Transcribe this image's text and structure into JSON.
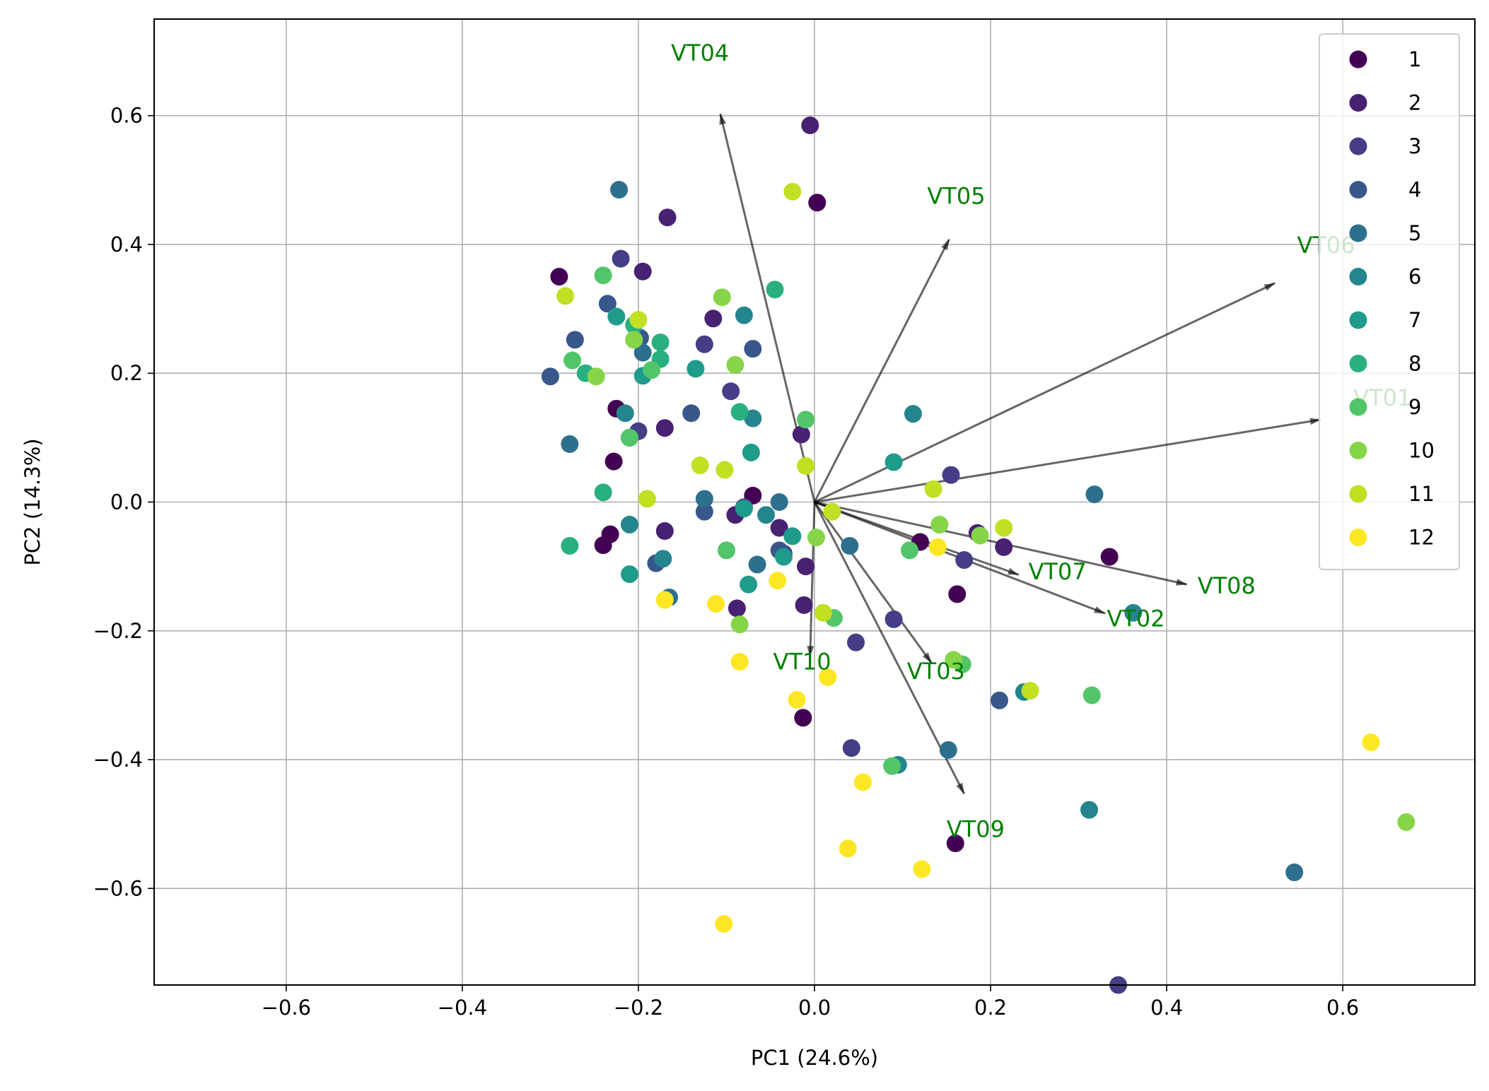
{
  "chart_data": {
    "type": "scatter",
    "title": "",
    "xlabel": "PC1 (24.6%)",
    "ylabel": "PC2 (14.3%)",
    "xlim": [
      -0.75,
      0.75
    ],
    "ylim": [
      -0.75,
      0.75
    ],
    "grid": true,
    "legend_placement": "top-right",
    "xticks": [
      {
        "value": -0.6,
        "label": "−0.6"
      },
      {
        "value": -0.4,
        "label": "−0.4"
      },
      {
        "value": -0.2,
        "label": "−0.2"
      },
      {
        "value": 0.0,
        "label": "0.0"
      },
      {
        "value": 0.2,
        "label": "0.2"
      },
      {
        "value": 0.4,
        "label": "0.4"
      },
      {
        "value": 0.6,
        "label": "0.6"
      }
    ],
    "yticks": [
      {
        "value": -0.6,
        "label": "−0.6"
      },
      {
        "value": -0.4,
        "label": "−0.4"
      },
      {
        "value": -0.2,
        "label": "−0.2"
      },
      {
        "value": 0.0,
        "label": "0.0"
      },
      {
        "value": 0.2,
        "label": "0.2"
      },
      {
        "value": 0.4,
        "label": "0.4"
      },
      {
        "value": 0.6,
        "label": "0.6"
      }
    ],
    "groups": [
      {
        "label": "1",
        "color": "#440154"
      },
      {
        "label": "2",
        "color": "#482173"
      },
      {
        "label": "3",
        "color": "#433e85"
      },
      {
        "label": "4",
        "color": "#38588c"
      },
      {
        "label": "5",
        "color": "#2d708e"
      },
      {
        "label": "6",
        "color": "#25858e"
      },
      {
        "label": "7",
        "color": "#1e9b8a"
      },
      {
        "label": "8",
        "color": "#2ab07f"
      },
      {
        "label": "9",
        "color": "#52c569"
      },
      {
        "label": "10",
        "color": "#86d549"
      },
      {
        "label": "11",
        "color": "#c2df23"
      },
      {
        "label": "12",
        "color": "#fde725"
      }
    ],
    "points": [
      {
        "g": "1",
        "x": -0.29,
        "y": 0.35
      },
      {
        "g": "1",
        "x": -0.225,
        "y": 0.145
      },
      {
        "g": "1",
        "x": -0.228,
        "y": 0.063
      },
      {
        "g": "1",
        "x": -0.24,
        "y": -0.067
      },
      {
        "g": "1",
        "x": -0.232,
        "y": -0.05
      },
      {
        "g": "1",
        "x": 0.003,
        "y": 0.465
      },
      {
        "g": "1",
        "x": -0.07,
        "y": 0.01
      },
      {
        "g": "1",
        "x": 0.12,
        "y": -0.062
      },
      {
        "g": "1",
        "x": 0.162,
        "y": -0.143
      },
      {
        "g": "1",
        "x": 0.335,
        "y": -0.085
      },
      {
        "g": "1",
        "x": 0.16,
        "y": -0.53
      },
      {
        "g": "1",
        "x": -0.013,
        "y": -0.335
      },
      {
        "g": "1",
        "x": -0.21,
        "y": 0.1
      },
      {
        "g": "2",
        "x": -0.005,
        "y": 0.585
      },
      {
        "g": "2",
        "x": -0.167,
        "y": 0.442
      },
      {
        "g": "2",
        "x": -0.195,
        "y": 0.358
      },
      {
        "g": "2",
        "x": -0.115,
        "y": 0.285
      },
      {
        "g": "2",
        "x": -0.17,
        "y": 0.115
      },
      {
        "g": "2",
        "x": -0.015,
        "y": 0.105
      },
      {
        "g": "2",
        "x": -0.17,
        "y": -0.045
      },
      {
        "g": "2",
        "x": -0.09,
        "y": -0.02
      },
      {
        "g": "2",
        "x": -0.04,
        "y": -0.04
      },
      {
        "g": "2",
        "x": -0.01,
        "y": -0.1
      },
      {
        "g": "2",
        "x": -0.012,
        "y": -0.16
      },
      {
        "g": "2",
        "x": -0.088,
        "y": -0.165
      },
      {
        "g": "2",
        "x": 0.185,
        "y": -0.048
      },
      {
        "g": "2",
        "x": 0.215,
        "y": -0.07
      },
      {
        "g": "3",
        "x": -0.22,
        "y": 0.378
      },
      {
        "g": "3",
        "x": -0.125,
        "y": 0.245
      },
      {
        "g": "3",
        "x": -0.2,
        "y": 0.11
      },
      {
        "g": "3",
        "x": -0.095,
        "y": 0.172
      },
      {
        "g": "3",
        "x": -0.08,
        "y": -0.008
      },
      {
        "g": "3",
        "x": -0.035,
        "y": -0.08
      },
      {
        "g": "3",
        "x": 0.155,
        "y": 0.042
      },
      {
        "g": "3",
        "x": 0.17,
        "y": -0.09
      },
      {
        "g": "3",
        "x": 0.09,
        "y": -0.182
      },
      {
        "g": "3",
        "x": 0.047,
        "y": -0.218
      },
      {
        "g": "3",
        "x": 0.042,
        "y": -0.382
      },
      {
        "g": "3",
        "x": 0.345,
        "y": -0.75
      },
      {
        "g": "4",
        "x": -0.3,
        "y": 0.195
      },
      {
        "g": "4",
        "x": -0.272,
        "y": 0.252
      },
      {
        "g": "4",
        "x": -0.235,
        "y": 0.308
      },
      {
        "g": "4",
        "x": -0.198,
        "y": 0.255
      },
      {
        "g": "4",
        "x": -0.14,
        "y": 0.138
      },
      {
        "g": "4",
        "x": -0.07,
        "y": 0.238
      },
      {
        "g": "4",
        "x": -0.125,
        "y": -0.015
      },
      {
        "g": "4",
        "x": -0.18,
        "y": -0.095
      },
      {
        "g": "4",
        "x": -0.04,
        "y": -0.075
      },
      {
        "g": "4",
        "x": 0.21,
        "y": -0.308
      },
      {
        "g": "5",
        "x": -0.222,
        "y": 0.485
      },
      {
        "g": "5",
        "x": -0.278,
        "y": 0.09
      },
      {
        "g": "5",
        "x": -0.195,
        "y": 0.232
      },
      {
        "g": "5",
        "x": -0.125,
        "y": 0.005
      },
      {
        "g": "5",
        "x": -0.04,
        "y": 0.0
      },
      {
        "g": "5",
        "x": -0.065,
        "y": -0.097
      },
      {
        "g": "5",
        "x": 0.04,
        "y": -0.068
      },
      {
        "g": "5",
        "x": 0.318,
        "y": 0.012
      },
      {
        "g": "5",
        "x": 0.152,
        "y": -0.385
      },
      {
        "g": "5",
        "x": 0.545,
        "y": -0.575
      },
      {
        "g": "5",
        "x": -0.165,
        "y": -0.148
      },
      {
        "g": "6",
        "x": -0.08,
        "y": 0.29
      },
      {
        "g": "6",
        "x": -0.215,
        "y": 0.138
      },
      {
        "g": "6",
        "x": -0.07,
        "y": 0.13
      },
      {
        "g": "6",
        "x": -0.21,
        "y": -0.035
      },
      {
        "g": "6",
        "x": -0.055,
        "y": -0.02
      },
      {
        "g": "6",
        "x": 0.112,
        "y": 0.137
      },
      {
        "g": "6",
        "x": 0.362,
        "y": -0.172
      },
      {
        "g": "6",
        "x": 0.312,
        "y": -0.478
      },
      {
        "g": "6",
        "x": 0.095,
        "y": -0.408
      },
      {
        "g": "6",
        "x": 0.238,
        "y": -0.295
      },
      {
        "g": "6",
        "x": -0.172,
        "y": -0.088
      },
      {
        "g": "7",
        "x": -0.225,
        "y": 0.288
      },
      {
        "g": "7",
        "x": -0.195,
        "y": 0.196
      },
      {
        "g": "7",
        "x": -0.135,
        "y": 0.207
      },
      {
        "g": "7",
        "x": -0.072,
        "y": 0.077
      },
      {
        "g": "7",
        "x": 0.09,
        "y": 0.062
      },
      {
        "g": "7",
        "x": -0.08,
        "y": -0.01
      },
      {
        "g": "7",
        "x": -0.025,
        "y": -0.053
      },
      {
        "g": "7",
        "x": -0.075,
        "y": -0.128
      },
      {
        "g": "7",
        "x": -0.21,
        "y": -0.112
      },
      {
        "g": "7",
        "x": -0.035,
        "y": -0.085
      },
      {
        "g": "8",
        "x": -0.045,
        "y": 0.33
      },
      {
        "g": "8",
        "x": -0.175,
        "y": 0.248
      },
      {
        "g": "8",
        "x": -0.175,
        "y": 0.222
      },
      {
        "g": "8",
        "x": -0.26,
        "y": 0.2
      },
      {
        "g": "8",
        "x": -0.24,
        "y": 0.015
      },
      {
        "g": "8",
        "x": -0.085,
        "y": 0.14
      },
      {
        "g": "8",
        "x": -0.278,
        "y": -0.068
      },
      {
        "g": "8",
        "x": -0.205,
        "y": 0.275
      },
      {
        "g": "9",
        "x": -0.24,
        "y": 0.352
      },
      {
        "g": "9",
        "x": -0.275,
        "y": 0.22
      },
      {
        "g": "9",
        "x": -0.21,
        "y": 0.1
      },
      {
        "g": "9",
        "x": -0.185,
        "y": 0.205
      },
      {
        "g": "9",
        "x": -0.1,
        "y": -0.075
      },
      {
        "g": "9",
        "x": 0.022,
        "y": -0.18
      },
      {
        "g": "9",
        "x": 0.108,
        "y": -0.075
      },
      {
        "g": "9",
        "x": 0.168,
        "y": -0.252
      },
      {
        "g": "9",
        "x": 0.315,
        "y": -0.3
      },
      {
        "g": "9",
        "x": 0.088,
        "y": -0.41
      },
      {
        "g": "9",
        "x": -0.01,
        "y": 0.128
      },
      {
        "g": "10",
        "x": -0.205,
        "y": 0.252
      },
      {
        "g": "10",
        "x": -0.105,
        "y": 0.318
      },
      {
        "g": "10",
        "x": -0.09,
        "y": 0.213
      },
      {
        "g": "10",
        "x": 0.142,
        "y": -0.035
      },
      {
        "g": "10",
        "x": 0.002,
        "y": -0.055
      },
      {
        "g": "10",
        "x": 0.158,
        "y": -0.245
      },
      {
        "g": "10",
        "x": 0.188,
        "y": -0.052
      },
      {
        "g": "10",
        "x": 0.672,
        "y": -0.497
      },
      {
        "g": "10",
        "x": -0.085,
        "y": -0.19
      },
      {
        "g": "10",
        "x": -0.248,
        "y": 0.195
      },
      {
        "g": "11",
        "x": -0.283,
        "y": 0.32
      },
      {
        "g": "11",
        "x": -0.025,
        "y": 0.482
      },
      {
        "g": "11",
        "x": -0.2,
        "y": 0.283
      },
      {
        "g": "11",
        "x": -0.13,
        "y": 0.057
      },
      {
        "g": "11",
        "x": -0.102,
        "y": 0.05
      },
      {
        "g": "11",
        "x": -0.01,
        "y": 0.056
      },
      {
        "g": "11",
        "x": -0.19,
        "y": 0.005
      },
      {
        "g": "11",
        "x": 0.02,
        "y": -0.015
      },
      {
        "g": "11",
        "x": 0.135,
        "y": 0.02
      },
      {
        "g": "11",
        "x": 0.215,
        "y": -0.04
      },
      {
        "g": "11",
        "x": 0.245,
        "y": -0.293
      },
      {
        "g": "11",
        "x": 0.01,
        "y": -0.172
      },
      {
        "g": "12",
        "x": -0.17,
        "y": -0.152
      },
      {
        "g": "12",
        "x": -0.112,
        "y": -0.158
      },
      {
        "g": "12",
        "x": -0.085,
        "y": -0.248
      },
      {
        "g": "12",
        "x": -0.042,
        "y": -0.122
      },
      {
        "g": "12",
        "x": 0.015,
        "y": -0.272
      },
      {
        "g": "12",
        "x": -0.02,
        "y": -0.307
      },
      {
        "g": "12",
        "x": 0.14,
        "y": -0.07
      },
      {
        "g": "12",
        "x": 0.055,
        "y": -0.435
      },
      {
        "g": "12",
        "x": 0.038,
        "y": -0.538
      },
      {
        "g": "12",
        "x": 0.122,
        "y": -0.57
      },
      {
        "g": "12",
        "x": -0.103,
        "y": -0.655
      },
      {
        "g": "12",
        "x": 0.632,
        "y": -0.373
      }
    ],
    "loadings": [
      {
        "label": "VT01",
        "x": 0.575,
        "y": 0.128,
        "lx": 0.612,
        "ly": 0.15
      },
      {
        "label": "VT02",
        "x": 0.33,
        "y": -0.173,
        "lx": 0.332,
        "ly": -0.193
      },
      {
        "label": "VT03",
        "x": 0.133,
        "y": -0.25,
        "lx": 0.105,
        "ly": -0.275
      },
      {
        "label": "VT04",
        "x": -0.107,
        "y": 0.603,
        "lx": -0.163,
        "ly": 0.685
      },
      {
        "label": "VT05",
        "x": 0.153,
        "y": 0.408,
        "lx": 0.128,
        "ly": 0.463
      },
      {
        "label": "VT06",
        "x": 0.523,
        "y": 0.34,
        "lx": 0.548,
        "ly": 0.387
      },
      {
        "label": "VT07",
        "x": 0.232,
        "y": -0.113,
        "lx": 0.243,
        "ly": -0.12
      },
      {
        "label": "VT08",
        "x": 0.423,
        "y": -0.128,
        "lx": 0.435,
        "ly": -0.142
      },
      {
        "label": "VT09",
        "x": 0.17,
        "y": -0.453,
        "lx": 0.15,
        "ly": -0.52
      },
      {
        "label": "VT10",
        "x": -0.005,
        "y": -0.24,
        "lx": -0.047,
        "ly": -0.26
      }
    ]
  }
}
